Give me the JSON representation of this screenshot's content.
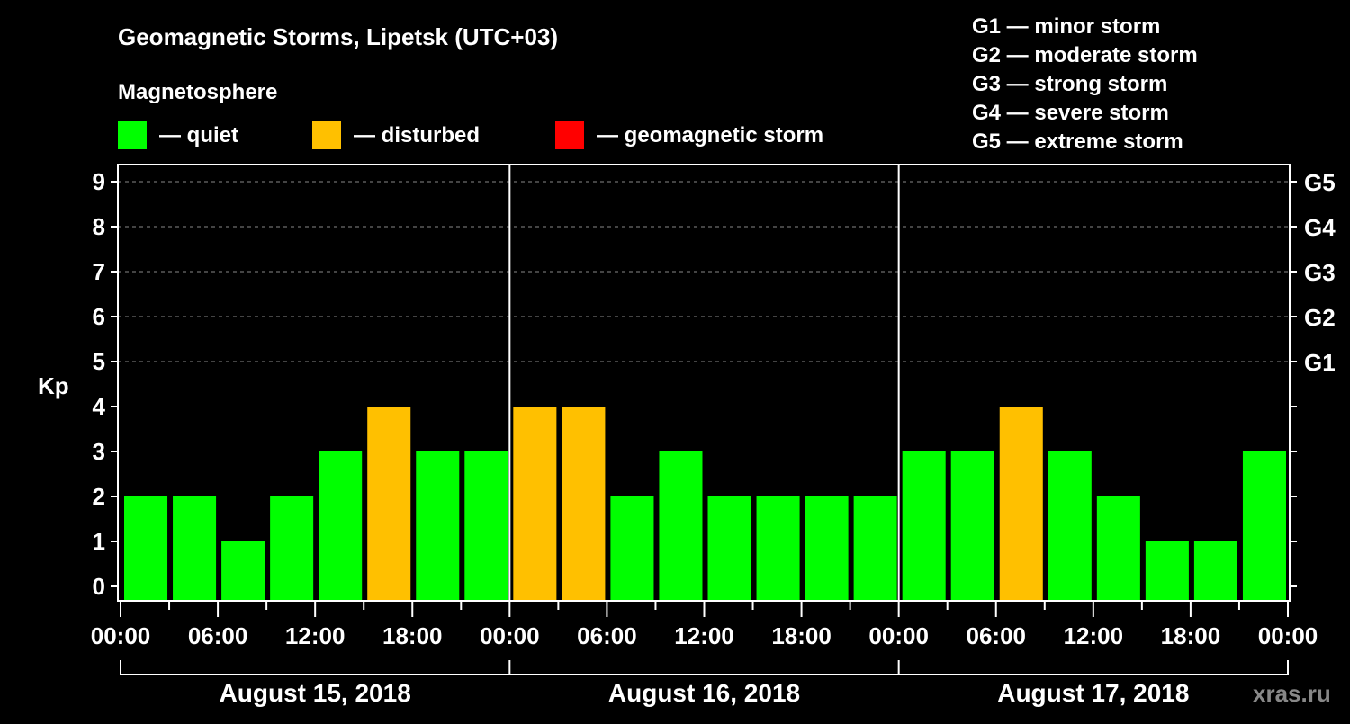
{
  "chart_data": {
    "type": "bar",
    "title": "Geomagnetic Storms, Lipetsk (UTC+03)",
    "legend_title": "Magnetosphere",
    "legend": [
      {
        "label": "— quiet",
        "color": "#00ff00"
      },
      {
        "label": "— disturbed",
        "color": "#ffc000"
      },
      {
        "label": "— geomagnetic storm",
        "color": "#ff0000"
      }
    ],
    "storm_scale": [
      "G1 — minor storm",
      "G2 — moderate storm",
      "G3 — strong storm",
      "G4 — severe storm",
      "G5 — extreme storm"
    ],
    "ylabel": "Kp",
    "ylim": [
      0,
      9
    ],
    "yticks": [
      "0",
      "1",
      "2",
      "3",
      "4",
      "5",
      "6",
      "7",
      "8",
      "9"
    ],
    "right_ticks": [
      {
        "kp": 5,
        "label": "G1"
      },
      {
        "kp": 6,
        "label": "G2"
      },
      {
        "kp": 7,
        "label": "G3"
      },
      {
        "kp": 8,
        "label": "G4"
      },
      {
        "kp": 9,
        "label": "G5"
      }
    ],
    "xticks": [
      "00:00",
      "06:00",
      "12:00",
      "18:00",
      "00:00",
      "06:00",
      "12:00",
      "18:00",
      "00:00",
      "06:00",
      "12:00",
      "18:00",
      "00:00"
    ],
    "days": [
      "August 15, 2018",
      "August 16, 2018",
      "August 17, 2018"
    ],
    "interval_hours": 3,
    "values": [
      2,
      2,
      1,
      2,
      3,
      4,
      3,
      3,
      4,
      4,
      2,
      3,
      2,
      2,
      2,
      2,
      3,
      3,
      4,
      3,
      2,
      1,
      1,
      3
    ],
    "thresholds": {
      "disturbed": 4,
      "storm": 5
    },
    "grid": true
  },
  "watermark": "xras.ru"
}
